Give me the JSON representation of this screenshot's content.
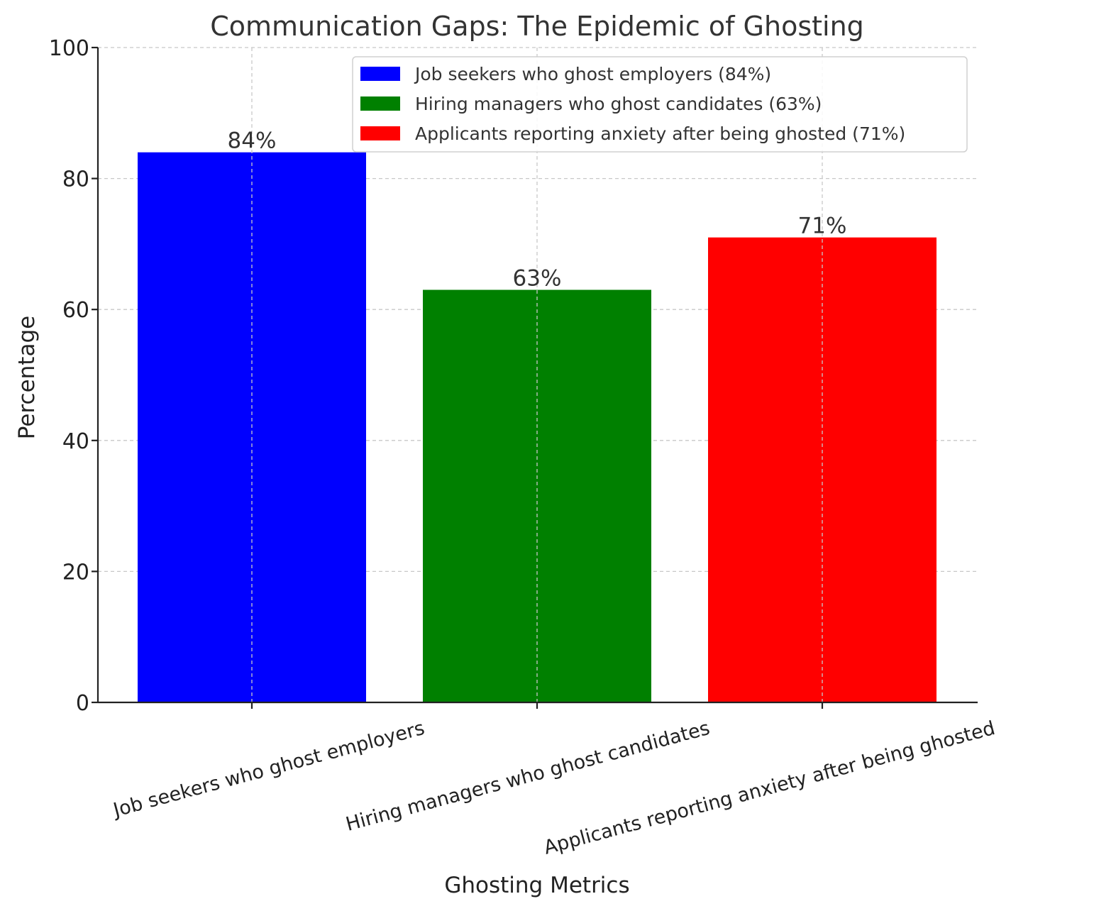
{
  "chart_data": {
    "type": "bar",
    "title": "Communication Gaps: The Epidemic of Ghosting",
    "xlabel": "Ghosting Metrics",
    "ylabel": "Percentage",
    "ylim": [
      0,
      100
    ],
    "yticks": [
      0,
      20,
      40,
      60,
      80,
      100
    ],
    "grid": true,
    "legend_position": "top-right",
    "categories": [
      "Job seekers who ghost employers",
      "Hiring managers who ghost candidates",
      "Applicants reporting anxiety after being ghosted"
    ],
    "values": [
      84,
      63,
      71
    ],
    "data_labels": [
      "84%",
      "63%",
      "71%"
    ],
    "colors": [
      "#0000ff",
      "#008000",
      "#ff0000"
    ],
    "legend": [
      "Job seekers who ghost employers (84%)",
      "Hiring managers who ghost candidates (63%)",
      "Applicants reporting anxiety after being ghosted (71%)"
    ]
  }
}
